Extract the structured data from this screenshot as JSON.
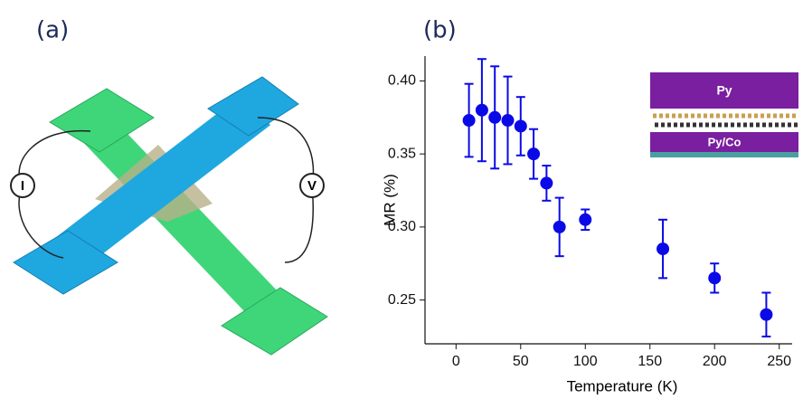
{
  "panels": {
    "a": "(a)",
    "b": "(b)"
  },
  "diagram": {
    "current_source": "I",
    "voltmeter": "V"
  },
  "inset": {
    "top_layer": "Py",
    "bottom_layer": "Py/Co"
  },
  "chart_data": {
    "type": "scatter",
    "xlabel": "Temperature (K)",
    "ylabel": "MR (%)",
    "x": [
      10,
      20,
      30,
      40,
      50,
      60,
      70,
      80,
      100,
      160,
      200,
      240
    ],
    "series": [
      {
        "color": "#0a0ae6",
        "values": [
          0.373,
          0.38,
          0.375,
          0.373,
          0.369,
          0.35,
          0.33,
          0.3,
          0.305,
          0.285,
          0.265,
          0.24
        ],
        "errors": [
          0.025,
          0.035,
          0.035,
          0.03,
          0.02,
          0.017,
          0.012,
          0.02,
          0.007,
          0.02,
          0.01,
          0.015
        ]
      }
    ],
    "xlim": [
      -24,
      260
    ],
    "ylim": [
      0.22,
      0.417
    ],
    "xticks": [
      0,
      50,
      100,
      150,
      200,
      250
    ],
    "yticks": [
      0.25,
      {
        "value": 0.3,
        "label": "0.30"
      },
      0.35,
      {
        "value": 0.4,
        "label": "0.40"
      }
    ]
  }
}
